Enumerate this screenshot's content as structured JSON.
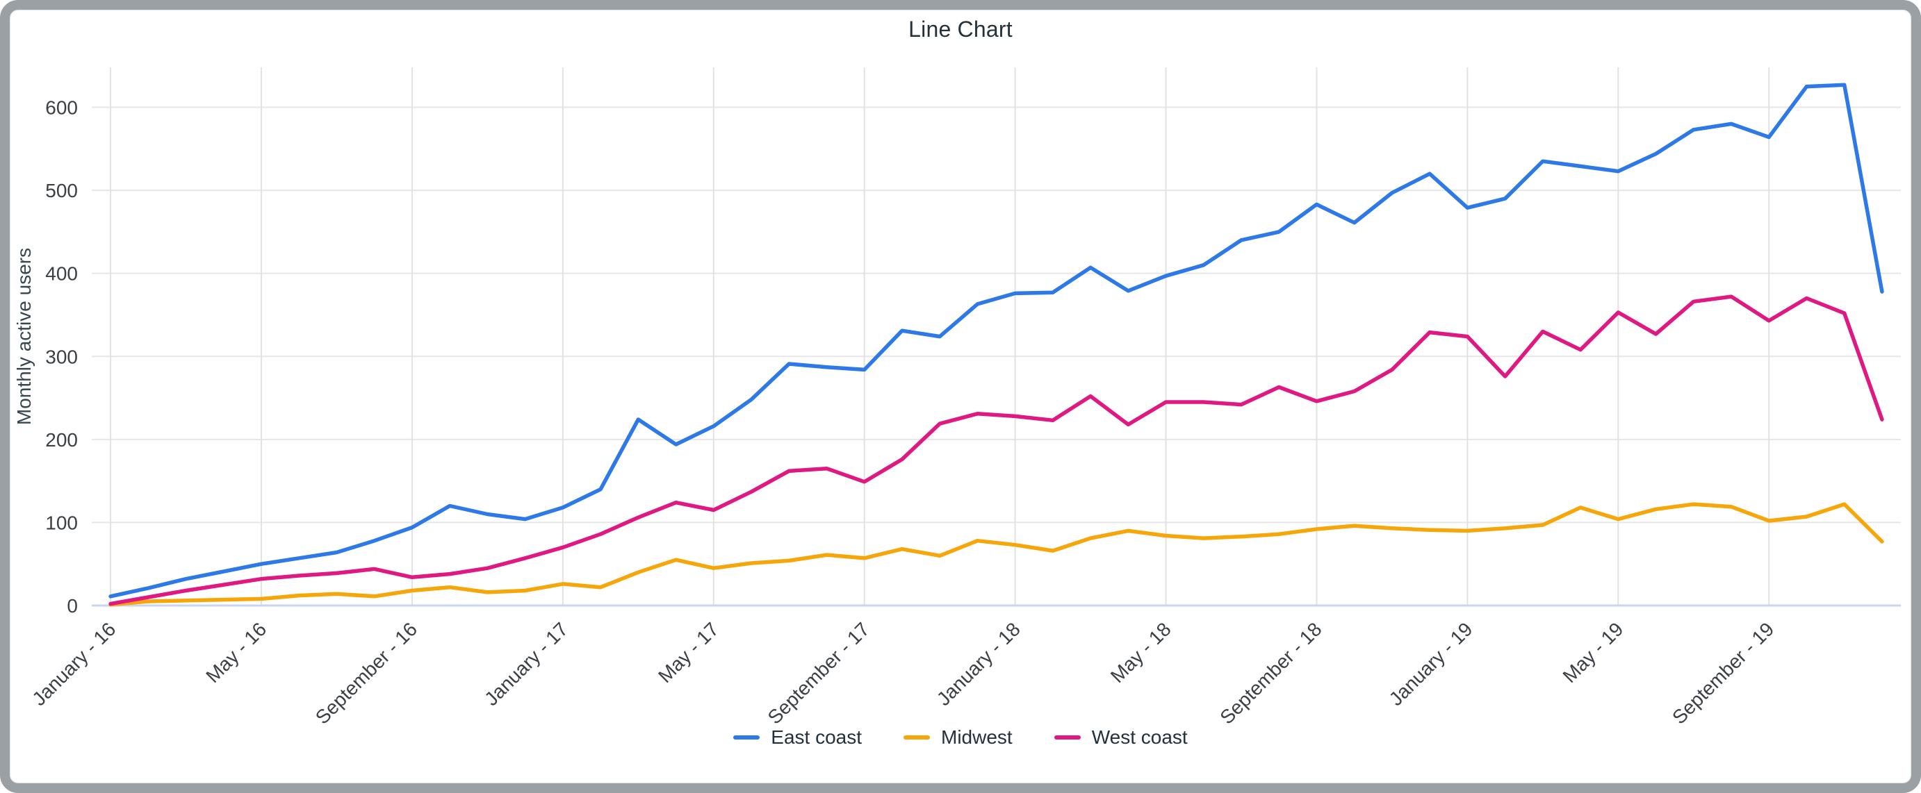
{
  "title": "Line Chart",
  "chart_data": {
    "type": "line",
    "title": "Line Chart",
    "xlabel": "",
    "ylabel": "Monthly active users",
    "ylim": [
      0,
      600
    ],
    "y_ticks": [
      0,
      100,
      200,
      300,
      400,
      500,
      600
    ],
    "x_tick_every": 4,
    "grid": true,
    "legend_position": "bottom",
    "x": [
      "January - 16",
      "February - 16",
      "March - 16",
      "April - 16",
      "May - 16",
      "June - 16",
      "July - 16",
      "August - 16",
      "September - 16",
      "October - 16",
      "November - 16",
      "December - 16",
      "January - 17",
      "February - 17",
      "March - 17",
      "April - 17",
      "May - 17",
      "June - 17",
      "July - 17",
      "August - 17",
      "September - 17",
      "October - 17",
      "November - 17",
      "December - 17",
      "January - 18",
      "February - 18",
      "March - 18",
      "April - 18",
      "May - 18",
      "June - 18",
      "July - 18",
      "August - 18",
      "September - 18",
      "October - 18",
      "November - 18",
      "December - 18",
      "January - 19",
      "February - 19",
      "March - 19",
      "April - 19",
      "May - 19",
      "June - 19",
      "July - 19",
      "August - 19",
      "September - 19",
      "October - 19",
      "November - 19",
      "December - 19"
    ],
    "x_tick_labels": [
      "January - 16",
      "May - 16",
      "September - 16",
      "January - 17",
      "May - 17",
      "September - 17",
      "January - 18",
      "May - 18",
      "September - 18",
      "January - 19",
      "May - 19",
      "September - 19"
    ],
    "series": [
      {
        "name": "East coast",
        "color": "#2c79e7",
        "values": [
          11,
          21,
          32,
          41,
          50,
          57,
          64,
          78,
          94,
          120,
          110,
          104,
          118,
          140,
          224,
          194,
          216,
          248,
          291,
          287,
          284,
          331,
          324,
          363,
          376,
          377,
          407,
          379,
          397,
          410,
          440,
          450,
          483,
          461,
          497,
          520,
          479,
          490,
          535,
          529,
          523,
          544,
          573,
          580,
          564,
          625,
          627,
          378
        ]
      },
      {
        "name": "Midwest",
        "color": "#f6a609",
        "values": [
          1,
          5,
          6,
          7,
          8,
          12,
          14,
          11,
          18,
          22,
          16,
          18,
          26,
          22,
          40,
          55,
          45,
          51,
          54,
          61,
          57,
          68,
          60,
          78,
          73,
          66,
          81,
          90,
          84,
          81,
          83,
          86,
          92,
          96,
          93,
          91,
          90,
          93,
          97,
          118,
          104,
          116,
          122,
          119,
          102,
          107,
          122,
          77
        ]
      },
      {
        "name": "West coast",
        "color": "#e01882",
        "values": [
          2,
          10,
          18,
          25,
          32,
          36,
          39,
          44,
          34,
          38,
          45,
          57,
          70,
          86,
          106,
          124,
          115,
          137,
          162,
          165,
          149,
          176,
          219,
          231,
          228,
          223,
          252,
          218,
          245,
          245,
          242,
          263,
          246,
          258,
          284,
          329,
          324,
          276,
          330,
          308,
          353,
          327,
          366,
          372,
          343,
          370,
          352,
          224
        ]
      }
    ]
  },
  "colors": {
    "grid_horizontal": "#e6e6e6",
    "grid_vertical": "#e2e2e2",
    "zero_axis": "#c9d5f0",
    "tick_text": "#3c4045",
    "axis_title_text": "#37474f",
    "frame": "#9aa0a4"
  }
}
